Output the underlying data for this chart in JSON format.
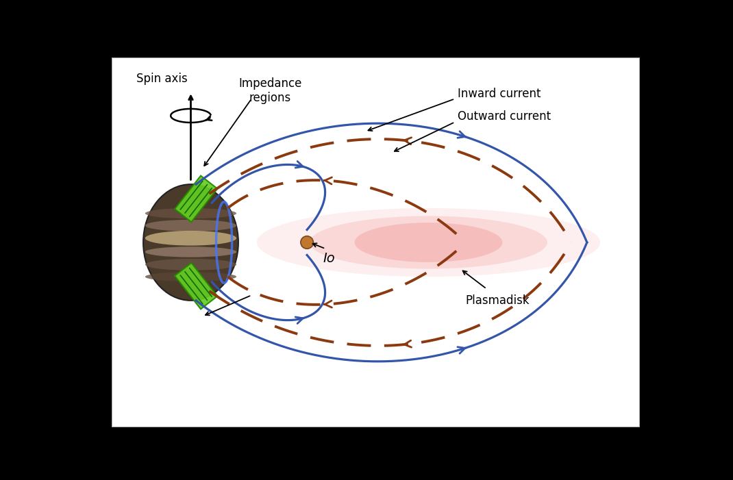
{
  "bg_color": "#ffffff",
  "blue_color": "#3355aa",
  "brown_dashed_color": "#8B3A10",
  "green_color": "#66cc22",
  "green_dark": "#228800",
  "pink_color": "#f08080",
  "pink_alpha": 0.3,
  "labels": {
    "spin_axis": "Spin axis",
    "impedance": "Impedance\nregions",
    "inward_current": "Inward current",
    "outward_current": "Outward current",
    "io": "Io",
    "plasmadisk": "Plasmadisk"
  }
}
